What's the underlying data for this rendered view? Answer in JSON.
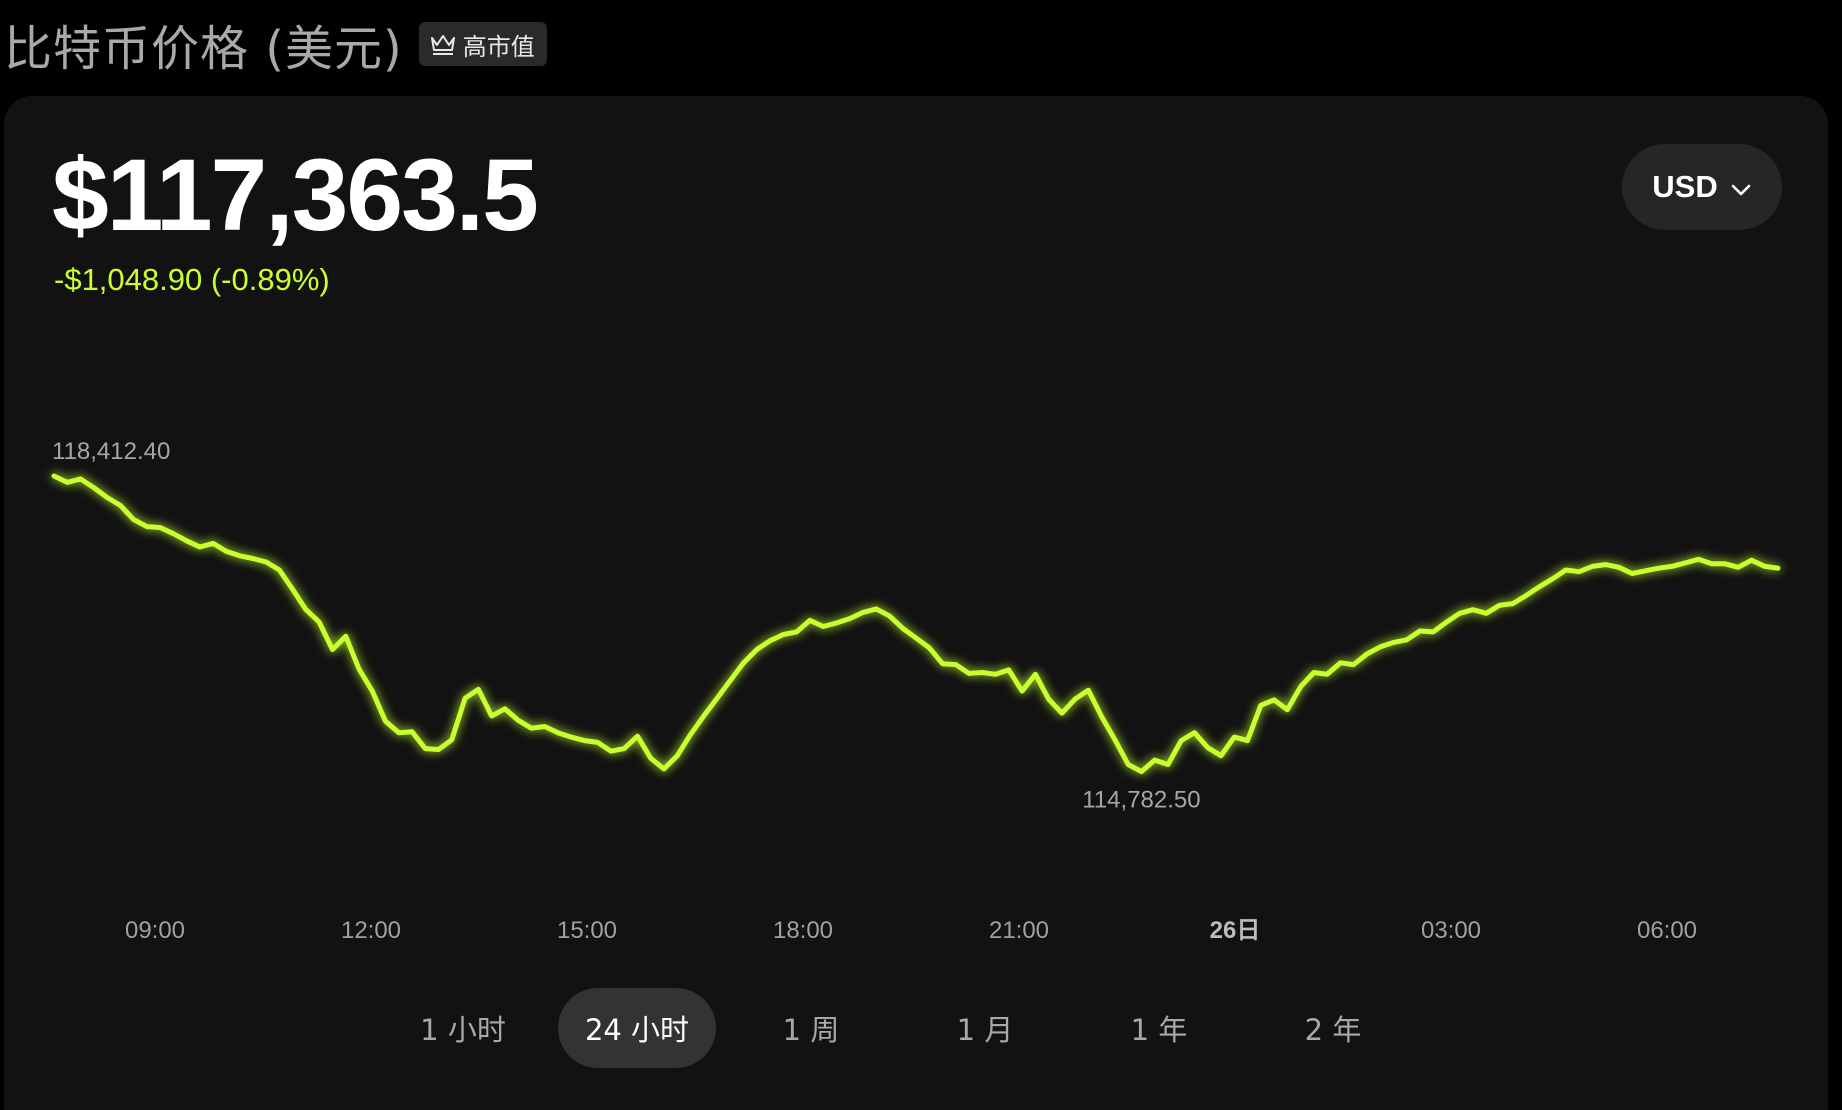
{
  "header": {
    "title": "比特币价格 (美元)",
    "badge_label": "高市值",
    "badge_icon": "crown-icon"
  },
  "price": {
    "current": "$117,363.5",
    "change": "-$1,048.90 (-0.89%)",
    "change_color": "#c8ff2e"
  },
  "currency": {
    "selected": "USD",
    "icon": "chevron-down-icon"
  },
  "chart_data": {
    "type": "line",
    "x_ticks": [
      "09:00",
      "12:00",
      "15:00",
      "18:00",
      "21:00",
      "26日",
      "03:00",
      "06:00"
    ],
    "x_ticks_bold": [
      false,
      false,
      false,
      false,
      false,
      true,
      false,
      false
    ],
    "high_label": "118,412.40",
    "low_label": "114,782.50",
    "line_color": "#c8ff2e",
    "ylim": [
      114782.5,
      118412.4
    ],
    "series": [
      {
        "values": [
          118412.4,
          118340,
          118380,
          118280,
          118170,
          118080,
          117920,
          117840,
          117830,
          117760,
          117680,
          117610,
          117650,
          117560,
          117510,
          117480,
          117440,
          117350,
          117130,
          116900,
          116760,
          116450,
          116600,
          116230,
          115980,
          115640,
          115510,
          115520,
          115330,
          115320,
          115430,
          115900,
          116000,
          115700,
          115780,
          115650,
          115560,
          115580,
          115510,
          115460,
          115420,
          115400,
          115300,
          115330,
          115470,
          115220,
          115100,
          115250,
          115490,
          115700,
          115900,
          116100,
          116300,
          116450,
          116550,
          116620,
          116650,
          116780,
          116710,
          116750,
          116800,
          116870,
          116910,
          116830,
          116690,
          116580,
          116470,
          116290,
          116280,
          116180,
          116190,
          116170,
          116220,
          115980,
          116170,
          115890,
          115730,
          115890,
          115990,
          115690,
          115430,
          115150,
          115070,
          115200,
          115150,
          115420,
          115510,
          115340,
          115250,
          115460,
          115420,
          115820,
          115880,
          115770,
          116030,
          116190,
          116170,
          116300,
          116280,
          116400,
          116480,
          116530,
          116560,
          116660,
          116650,
          116760,
          116860,
          116900,
          116860,
          116950,
          116970,
          117060,
          117160,
          117250,
          117350,
          117330,
          117390,
          117410,
          117380,
          117310,
          117340,
          117370,
          117390,
          117430,
          117470,
          117420,
          117420,
          117380,
          117460,
          117390,
          117370
        ]
      }
    ]
  },
  "ranges": [
    {
      "label": "1 小时",
      "active": false
    },
    {
      "label": "24 小时",
      "active": true
    },
    {
      "label": "1 周",
      "active": false
    },
    {
      "label": "1 月",
      "active": false
    },
    {
      "label": "1 年",
      "active": false
    },
    {
      "label": "2 年",
      "active": false
    }
  ]
}
